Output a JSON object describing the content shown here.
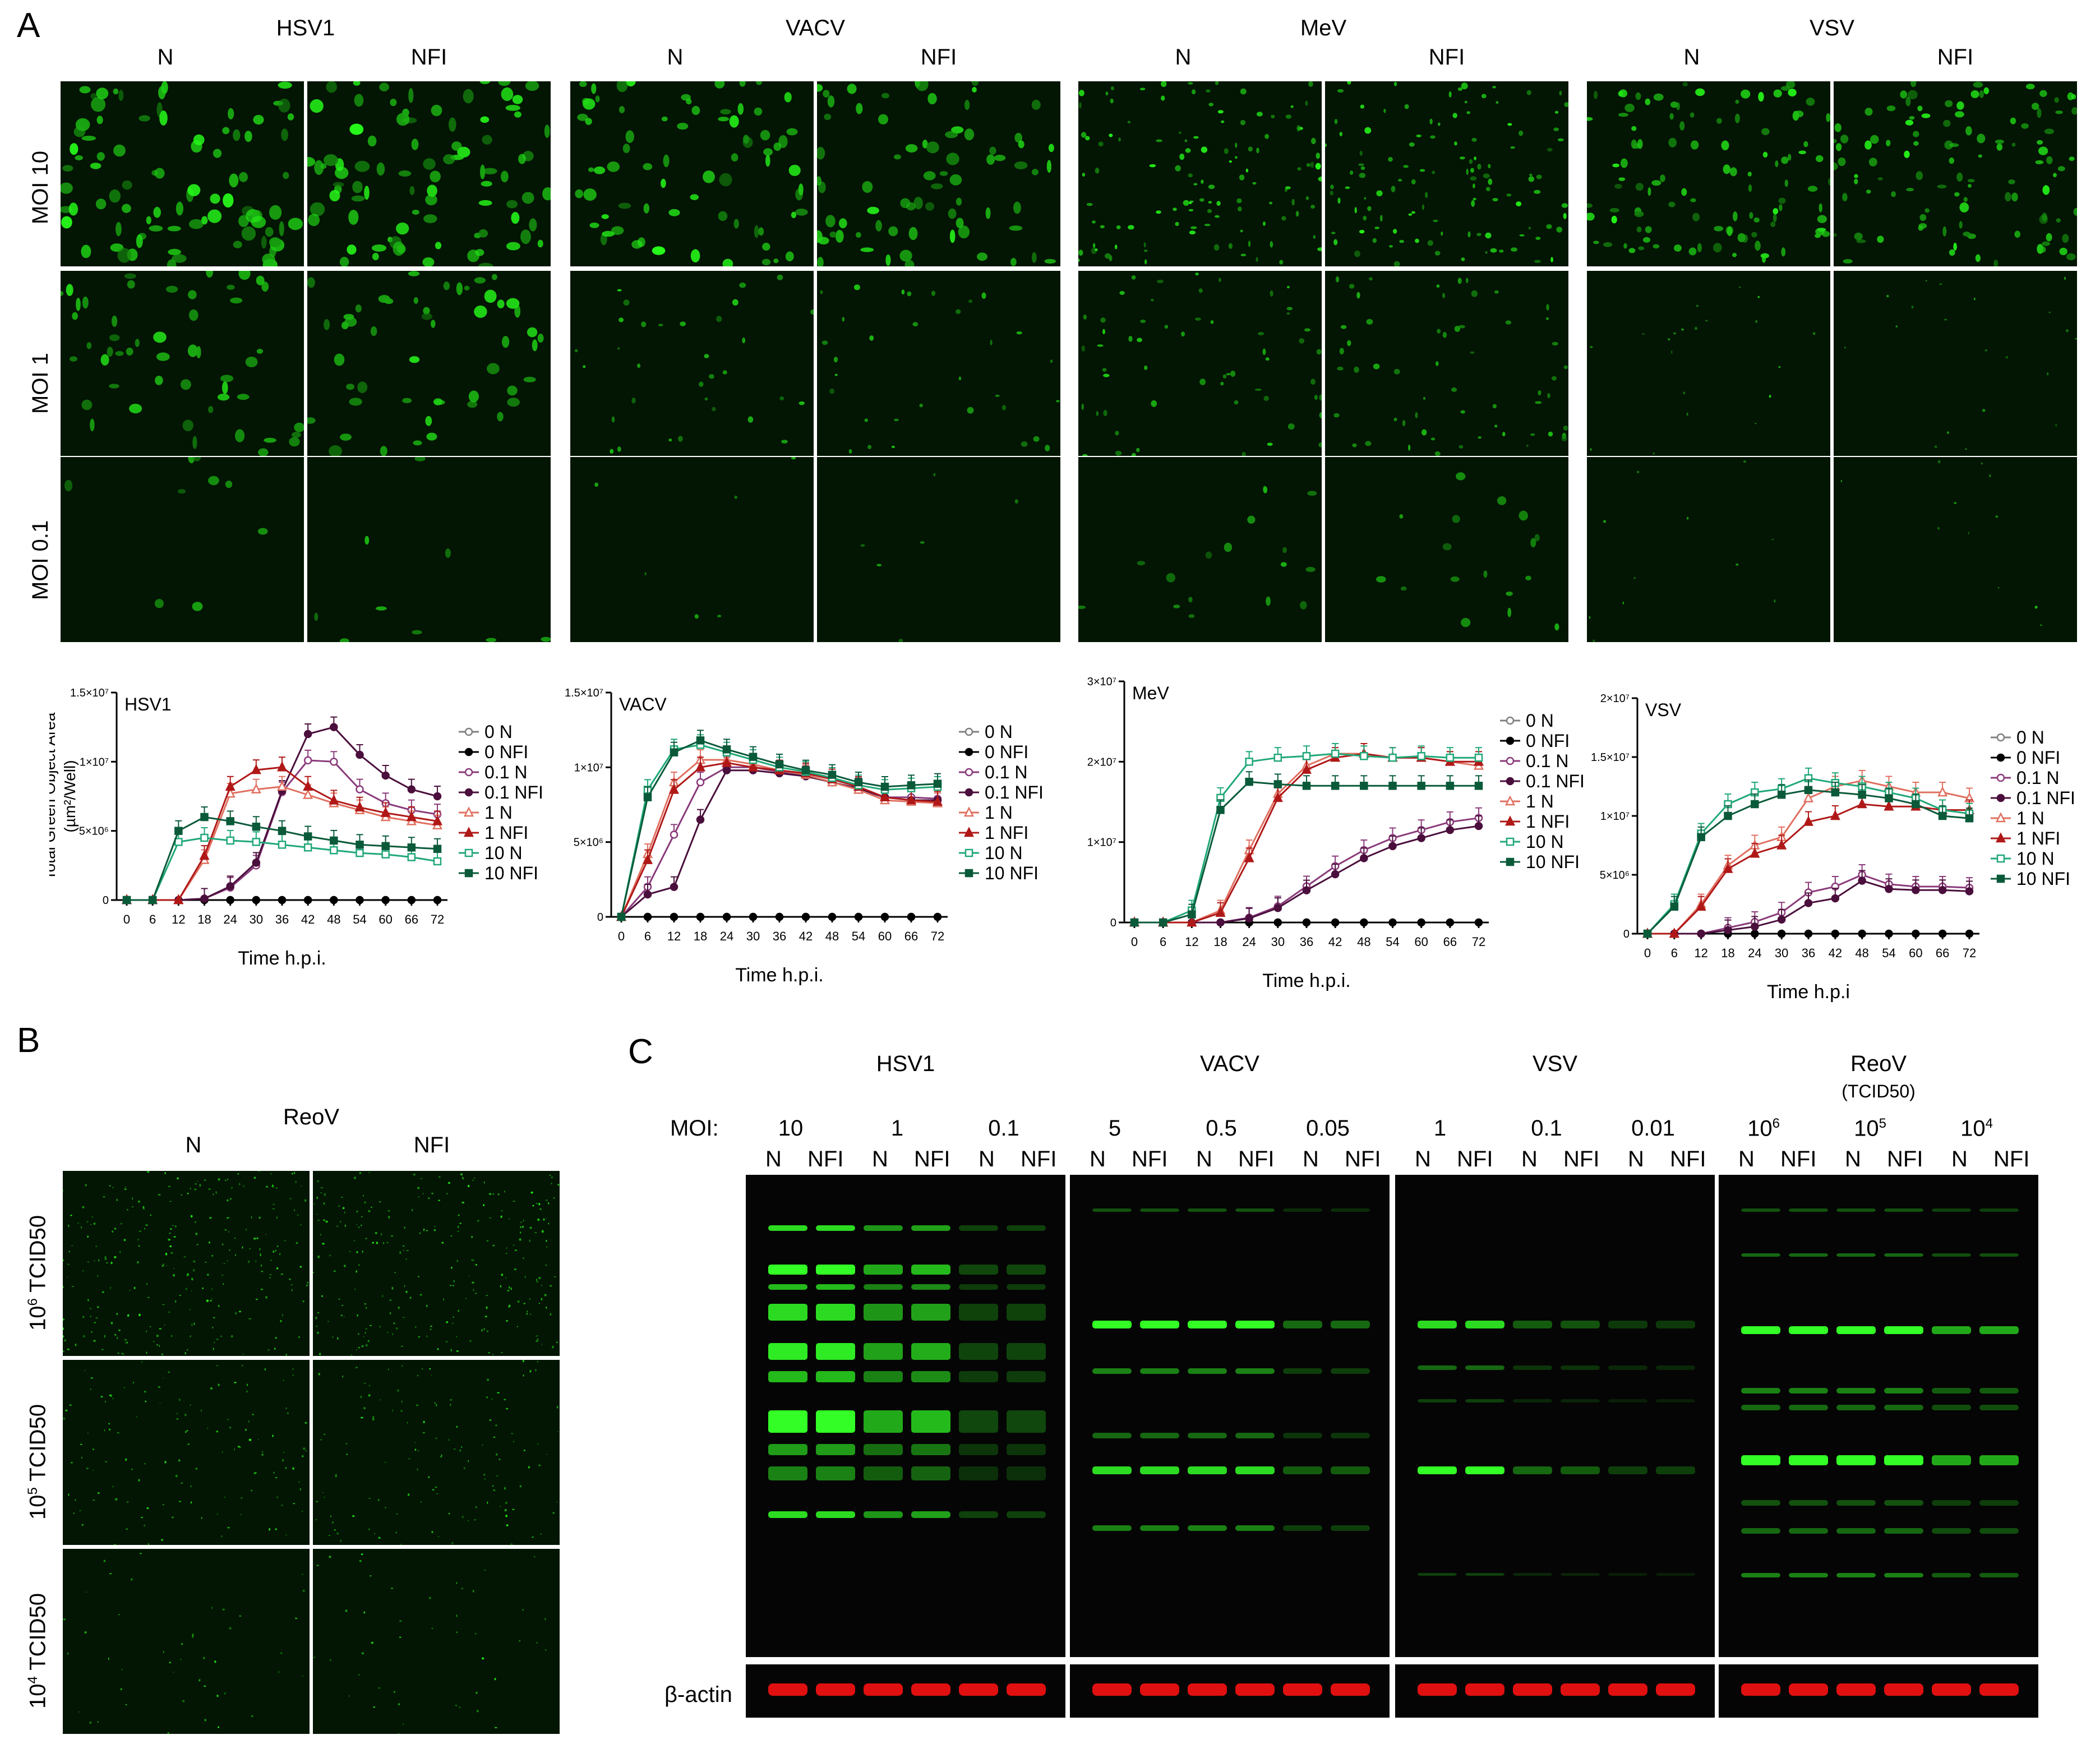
{
  "panel_labels": {
    "a": "A",
    "b": "B",
    "c": "C"
  },
  "panel_a": {
    "viruses": [
      "HSV1",
      "VACV",
      "MeV",
      "VSV"
    ],
    "conditions": [
      "N",
      "NFI"
    ],
    "row_labels": [
      "MOI 10",
      "MOI 1",
      "MOI 0.1"
    ]
  },
  "charts_common": {
    "ylabel_line1": "Total Green Object Area",
    "ylabel_line2": "(µm²/Well)",
    "xticks": [
      "0",
      "6",
      "12",
      "18",
      "24",
      "30",
      "36",
      "42",
      "48",
      "54",
      "60",
      "66",
      "72"
    ],
    "legend": [
      "0 N",
      "0 NFI",
      "0.1 N",
      "0.1 NFI",
      "1 N",
      "1 NFI",
      "10 N",
      "10 NFI"
    ],
    "colors": {
      "N0": "#808080",
      "NFI0": "#000000",
      "N01": "#8a3a7a",
      "NFI01": "#4a0f3c",
      "N1": "#e07060",
      "NFI1": "#b01818",
      "N10": "#20a878",
      "NFI10": "#0a5a3a"
    }
  },
  "chart_data": [
    {
      "type": "line",
      "title": "HSV1",
      "xlabel": "Time h.p.i.",
      "x": [
        0,
        6,
        12,
        18,
        24,
        30,
        36,
        42,
        48,
        54,
        60,
        66,
        72
      ],
      "ylim": [
        0,
        15000000
      ],
      "yticks": [
        "0",
        "5×10⁶",
        "1×10⁷",
        "1.5×10⁷"
      ],
      "ytick_values": [
        0,
        5000000,
        10000000,
        15000000
      ],
      "series": [
        {
          "name": "0 N",
          "values": [
            0,
            0,
            0,
            0,
            0,
            0,
            0,
            0,
            0,
            0,
            0,
            0,
            0
          ]
        },
        {
          "name": "0 NFI",
          "values": [
            0,
            0,
            0,
            0,
            0,
            0,
            0,
            0,
            0,
            0,
            0,
            0,
            0
          ]
        },
        {
          "name": "0.1 N",
          "values": [
            0,
            0,
            0,
            100000,
            900000,
            2500000,
            7800000,
            10100000,
            10000000,
            8000000,
            7000000,
            6500000,
            6200000
          ]
        },
        {
          "name": "0.1 NFI",
          "values": [
            0,
            0,
            0,
            100000,
            1000000,
            2700000,
            7900000,
            12000000,
            12500000,
            10500000,
            9000000,
            8000000,
            7500000
          ]
        },
        {
          "name": "1 N",
          "values": [
            0,
            0,
            0,
            2900000,
            7700000,
            8000000,
            8200000,
            7600000,
            7000000,
            6500000,
            6000000,
            5700000,
            5400000
          ]
        },
        {
          "name": "1 NFI",
          "values": [
            0,
            0,
            0,
            3200000,
            8200000,
            9400000,
            9600000,
            8200000,
            7200000,
            6700000,
            6300000,
            6000000,
            5700000
          ]
        },
        {
          "name": "10 N",
          "values": [
            0,
            0,
            4200000,
            4500000,
            4300000,
            4200000,
            4000000,
            3800000,
            3600000,
            3400000,
            3300000,
            3100000,
            2800000
          ]
        },
        {
          "name": "10 NFI",
          "values": [
            0,
            0,
            5000000,
            6000000,
            5700000,
            5300000,
            5000000,
            4600000,
            4300000,
            4000000,
            3900000,
            3800000,
            3700000
          ]
        }
      ]
    },
    {
      "type": "line",
      "title": "VACV",
      "xlabel": "Time h.p.i.",
      "x": [
        0,
        6,
        12,
        18,
        24,
        30,
        36,
        42,
        48,
        54,
        60,
        66,
        72
      ],
      "ylim": [
        0,
        15000000
      ],
      "yticks": [
        "0",
        "5×10⁶",
        "1×10⁷",
        "1.5×10⁷"
      ],
      "ytick_values": [
        0,
        5000000,
        10000000,
        15000000
      ],
      "series": [
        {
          "name": "0 N",
          "values": [
            0,
            0,
            0,
            0,
            0,
            0,
            0,
            0,
            0,
            0,
            0,
            0,
            0
          ]
        },
        {
          "name": "0 NFI",
          "values": [
            0,
            0,
            0,
            0,
            0,
            0,
            0,
            0,
            0,
            0,
            0,
            0,
            0
          ]
        },
        {
          "name": "0.1 N",
          "values": [
            0,
            2000000,
            5500000,
            9000000,
            10000000,
            10000000,
            9700000,
            9500000,
            9000000,
            8500000,
            8000000,
            8000000,
            7900000
          ]
        },
        {
          "name": "0.1 NFI",
          "values": [
            0,
            1500000,
            2000000,
            6500000,
            9800000,
            9800000,
            9600000,
            9400000,
            9000000,
            8600000,
            8000000,
            7800000,
            7800000
          ]
        },
        {
          "name": "1 N",
          "values": [
            0,
            4200000,
            9000000,
            10500000,
            10500000,
            10200000,
            9800000,
            9500000,
            9000000,
            8500000,
            7800000,
            7700000,
            7600000
          ]
        },
        {
          "name": "1 NFI",
          "values": [
            0,
            3800000,
            8500000,
            10000000,
            10300000,
            10000000,
            9800000,
            9600000,
            9200000,
            8700000,
            8000000,
            7800000,
            7700000
          ]
        },
        {
          "name": "10 N",
          "values": [
            0,
            8500000,
            11200000,
            11500000,
            11000000,
            10500000,
            10000000,
            9700000,
            9300000,
            8800000,
            8500000,
            8600000,
            8700000
          ]
        },
        {
          "name": "10 NFI",
          "values": [
            0,
            8000000,
            11000000,
            11800000,
            11200000,
            10700000,
            10200000,
            9800000,
            9500000,
            9000000,
            8700000,
            8800000,
            8900000
          ]
        }
      ]
    },
    {
      "type": "line",
      "title": "MeV",
      "xlabel": "Time h.p.i.",
      "x": [
        0,
        6,
        12,
        18,
        24,
        30,
        36,
        42,
        48,
        54,
        60,
        66,
        72
      ],
      "ylim": [
        0,
        30000000
      ],
      "yticks": [
        "0",
        "1×10⁷",
        "2×10⁷",
        "3×10⁷"
      ],
      "ytick_values": [
        0,
        10000000,
        20000000,
        30000000
      ],
      "series": [
        {
          "name": "0 N",
          "values": [
            0,
            0,
            0,
            0,
            0,
            0,
            0,
            0,
            0,
            0,
            0,
            0,
            0
          ]
        },
        {
          "name": "0 NFI",
          "values": [
            0,
            0,
            0,
            0,
            0,
            0,
            0,
            0,
            0,
            0,
            0,
            0,
            0
          ]
        },
        {
          "name": "0.1 N",
          "values": [
            0,
            0,
            0,
            0,
            600000,
            2000000,
            4500000,
            7000000,
            9000000,
            10500000,
            11500000,
            12500000,
            13000000
          ]
        },
        {
          "name": "0.1 NFI",
          "values": [
            0,
            0,
            0,
            0,
            500000,
            1800000,
            4000000,
            6000000,
            8000000,
            9500000,
            10500000,
            11500000,
            12000000
          ]
        },
        {
          "name": "1 N",
          "values": [
            0,
            0,
            0,
            1500000,
            9000000,
            16000000,
            19500000,
            21000000,
            21000000,
            20500000,
            20500000,
            20000000,
            19500000
          ]
        },
        {
          "name": "1 NFI",
          "values": [
            0,
            0,
            0,
            1200000,
            8000000,
            15500000,
            19000000,
            20500000,
            21000000,
            20500000,
            20500000,
            20000000,
            20000000
          ]
        },
        {
          "name": "10 N",
          "values": [
            0,
            0,
            1500000,
            15500000,
            20000000,
            20500000,
            20700000,
            21000000,
            20700000,
            20500000,
            20700000,
            20500000,
            20500000
          ]
        },
        {
          "name": "10 NFI",
          "values": [
            0,
            0,
            1000000,
            14000000,
            17500000,
            17200000,
            17000000,
            17000000,
            17000000,
            17000000,
            17000000,
            17000000,
            17000000
          ]
        }
      ]
    },
    {
      "type": "line",
      "title": "VSV",
      "xlabel": "Time h.p.i",
      "x": [
        0,
        6,
        12,
        18,
        24,
        30,
        36,
        42,
        48,
        54,
        60,
        66,
        72
      ],
      "ylim": [
        0,
        20000000
      ],
      "yticks": [
        "0",
        "5×10⁶",
        "1×10⁷",
        "1.5×10⁷",
        "2×10⁷"
      ],
      "ytick_values": [
        0,
        5000000,
        10000000,
        15000000,
        20000000
      ],
      "series": [
        {
          "name": "0 N",
          "values": [
            0,
            0,
            0,
            0,
            0,
            0,
            0,
            0,
            0,
            0,
            0,
            0,
            0
          ]
        },
        {
          "name": "0 NFI",
          "values": [
            0,
            0,
            0,
            0,
            0,
            0,
            0,
            0,
            0,
            0,
            0,
            0,
            0
          ]
        },
        {
          "name": "0.1 N",
          "values": [
            0,
            0,
            0,
            500000,
            1000000,
            1800000,
            3500000,
            4000000,
            5000000,
            4200000,
            4000000,
            4000000,
            3900000
          ]
        },
        {
          "name": "0.1 NFI",
          "values": [
            0,
            0,
            0,
            300000,
            600000,
            1200000,
            2600000,
            3000000,
            4500000,
            3800000,
            3700000,
            3700000,
            3600000
          ]
        },
        {
          "name": "1 N",
          "values": [
            0,
            0,
            2500000,
            5800000,
            7500000,
            8200000,
            11500000,
            12500000,
            13000000,
            12500000,
            12000000,
            12000000,
            11500000
          ]
        },
        {
          "name": "1 NFI",
          "values": [
            0,
            0,
            2300000,
            5500000,
            6800000,
            7500000,
            9500000,
            10000000,
            11000000,
            10800000,
            10800000,
            10500000,
            10500000
          ]
        },
        {
          "name": "10 N",
          "values": [
            0,
            2500000,
            8500000,
            11000000,
            12000000,
            12300000,
            13200000,
            12800000,
            12500000,
            12000000,
            11500000,
            10500000,
            10200000
          ]
        },
        {
          "name": "10 NFI",
          "values": [
            0,
            2300000,
            8200000,
            10000000,
            11000000,
            11800000,
            12200000,
            12000000,
            11800000,
            11500000,
            11000000,
            10000000,
            9800000
          ]
        }
      ]
    }
  ],
  "panel_b": {
    "virus": "ReoV",
    "conditions": [
      "N",
      "NFI"
    ],
    "row_labels": [
      {
        "base": "10",
        "exp": "6",
        "unit": " TCID50"
      },
      {
        "base": "10",
        "exp": "5",
        "unit": " TCID50"
      },
      {
        "base": "10",
        "exp": "4",
        "unit": " TCID50"
      }
    ]
  },
  "panel_c": {
    "moi_label": "MOI:",
    "actin_label": "β-actin",
    "groups": [
      {
        "virus": "HSV1",
        "sub": "",
        "mois": [
          {
            "text": "10",
            "exp": ""
          },
          {
            "text": "1",
            "exp": ""
          },
          {
            "text": "0.1",
            "exp": ""
          }
        ]
      },
      {
        "virus": "VACV",
        "sub": "",
        "mois": [
          {
            "text": "5",
            "exp": ""
          },
          {
            "text": "0.5",
            "exp": ""
          },
          {
            "text": "0.05",
            "exp": ""
          }
        ]
      },
      {
        "virus": "VSV",
        "sub": "",
        "mois": [
          {
            "text": "1",
            "exp": ""
          },
          {
            "text": "0.1",
            "exp": ""
          },
          {
            "text": "0.01",
            "exp": ""
          }
        ]
      },
      {
        "virus": "ReoV",
        "sub": "(TCID50)",
        "mois": [
          {
            "text": "10",
            "exp": "6"
          },
          {
            "text": "10",
            "exp": "5"
          },
          {
            "text": "10",
            "exp": "4"
          }
        ]
      }
    ],
    "lane_labels": [
      "N",
      "NFI"
    ]
  }
}
